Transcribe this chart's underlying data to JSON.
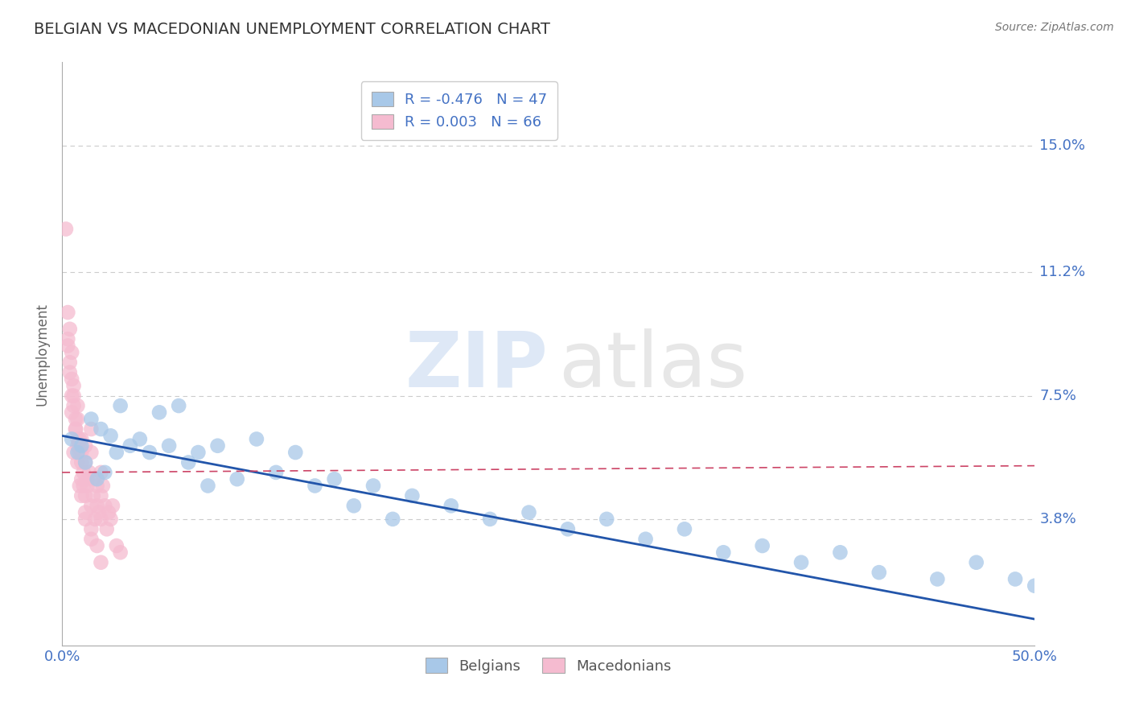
{
  "title": "BELGIAN VS MACEDONIAN UNEMPLOYMENT CORRELATION CHART",
  "source": "Source: ZipAtlas.com",
  "ylabel": "Unemployment",
  "xlim": [
    0.0,
    0.5
  ],
  "ylim": [
    0.0,
    0.175
  ],
  "yticks": [
    0.038,
    0.075,
    0.112,
    0.15
  ],
  "ytick_labels": [
    "3.8%",
    "7.5%",
    "11.2%",
    "15.0%"
  ],
  "xticks": [
    0.0,
    0.1,
    0.2,
    0.3,
    0.4,
    0.5
  ],
  "xtick_labels": [
    "0.0%",
    "",
    "",
    "",
    "",
    "50.0%"
  ],
  "belgians_R": "-0.476",
  "belgians_N": "47",
  "macedonians_R": "0.003",
  "macedonians_N": "66",
  "belgian_color": "#a8c8e8",
  "macedonian_color": "#f5bbd0",
  "belgian_line_color": "#2255aa",
  "macedonian_line_color": "#cc4466",
  "watermark_zip": "ZIP",
  "watermark_atlas": "atlas",
  "belgians_x": [
    0.005,
    0.008,
    0.01,
    0.012,
    0.015,
    0.018,
    0.02,
    0.022,
    0.025,
    0.028,
    0.03,
    0.035,
    0.04,
    0.045,
    0.05,
    0.055,
    0.06,
    0.065,
    0.07,
    0.075,
    0.08,
    0.09,
    0.1,
    0.11,
    0.12,
    0.13,
    0.14,
    0.15,
    0.16,
    0.17,
    0.18,
    0.2,
    0.22,
    0.24,
    0.26,
    0.28,
    0.3,
    0.32,
    0.34,
    0.36,
    0.38,
    0.4,
    0.42,
    0.45,
    0.47,
    0.49,
    0.5
  ],
  "belgians_y": [
    0.062,
    0.058,
    0.06,
    0.055,
    0.068,
    0.05,
    0.065,
    0.052,
    0.063,
    0.058,
    0.072,
    0.06,
    0.062,
    0.058,
    0.07,
    0.06,
    0.072,
    0.055,
    0.058,
    0.048,
    0.06,
    0.05,
    0.062,
    0.052,
    0.058,
    0.048,
    0.05,
    0.042,
    0.048,
    0.038,
    0.045,
    0.042,
    0.038,
    0.04,
    0.035,
    0.038,
    0.032,
    0.035,
    0.028,
    0.03,
    0.025,
    0.028,
    0.022,
    0.02,
    0.025,
    0.02,
    0.018
  ],
  "macedonians_x": [
    0.002,
    0.003,
    0.003,
    0.004,
    0.004,
    0.005,
    0.005,
    0.005,
    0.006,
    0.006,
    0.007,
    0.007,
    0.008,
    0.008,
    0.008,
    0.008,
    0.009,
    0.009,
    0.01,
    0.01,
    0.01,
    0.01,
    0.011,
    0.011,
    0.012,
    0.012,
    0.012,
    0.013,
    0.013,
    0.014,
    0.015,
    0.015,
    0.015,
    0.016,
    0.016,
    0.017,
    0.018,
    0.018,
    0.019,
    0.02,
    0.02,
    0.02,
    0.021,
    0.022,
    0.023,
    0.024,
    0.025,
    0.026,
    0.028,
    0.03,
    0.004,
    0.005,
    0.006,
    0.007,
    0.008,
    0.009,
    0.01,
    0.012,
    0.015,
    0.018,
    0.003,
    0.006,
    0.009,
    0.012,
    0.015,
    0.02
  ],
  "macedonians_y": [
    0.125,
    0.1,
    0.092,
    0.095,
    0.085,
    0.088,
    0.08,
    0.075,
    0.072,
    0.078,
    0.068,
    0.065,
    0.062,
    0.068,
    0.06,
    0.072,
    0.058,
    0.062,
    0.055,
    0.058,
    0.05,
    0.062,
    0.048,
    0.052,
    0.045,
    0.055,
    0.06,
    0.05,
    0.048,
    0.052,
    0.042,
    0.058,
    0.065,
    0.045,
    0.05,
    0.038,
    0.042,
    0.048,
    0.04,
    0.052,
    0.045,
    0.038,
    0.048,
    0.042,
    0.035,
    0.04,
    0.038,
    0.042,
    0.03,
    0.028,
    0.082,
    0.07,
    0.075,
    0.065,
    0.055,
    0.06,
    0.045,
    0.04,
    0.035,
    0.03,
    0.09,
    0.058,
    0.048,
    0.038,
    0.032,
    0.025
  ],
  "belgian_trendline_x": [
    0.0,
    0.5
  ],
  "belgian_trendline_y": [
    0.063,
    0.008
  ],
  "macedonian_trendline_x": [
    0.0,
    0.5
  ],
  "macedonian_trendline_y": [
    0.052,
    0.054
  ]
}
